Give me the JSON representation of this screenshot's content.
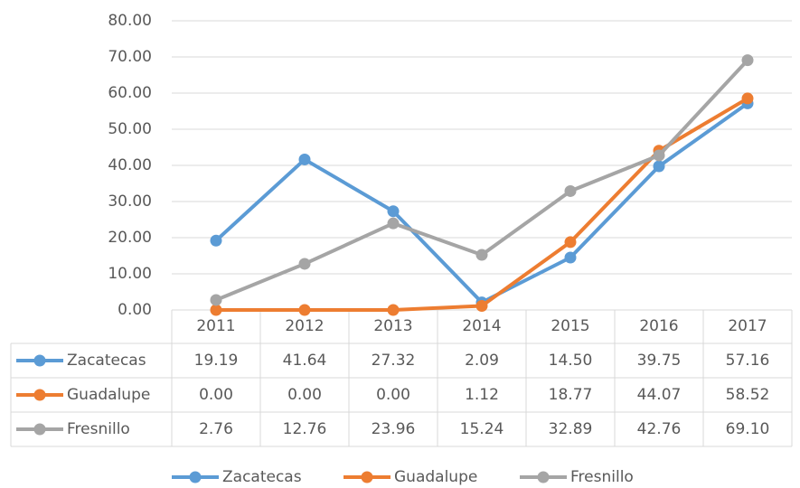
{
  "chart_data": {
    "type": "line",
    "categories": [
      "2011",
      "2012",
      "2013",
      "2014",
      "2015",
      "2016",
      "2017"
    ],
    "series": [
      {
        "name": "Zacatecas",
        "color": "#5b9bd5",
        "values": [
          19.19,
          41.64,
          27.32,
          2.09,
          14.5,
          39.75,
          57.16
        ],
        "value_labels": [
          "19.19",
          "41.64",
          "27.32",
          "2.09",
          "14.50",
          "39.75",
          "57.16"
        ]
      },
      {
        "name": "Guadalupe",
        "color": "#ed7d31",
        "values": [
          0,
          0,
          0,
          1.12,
          18.77,
          44.07,
          58.52
        ],
        "value_labels": [
          "0.00",
          "0.00",
          "0.00",
          "1.12",
          "18.77",
          "44.07",
          "58.52"
        ]
      },
      {
        "name": "Fresnillo",
        "color": "#a5a5a5",
        "values": [
          2.76,
          12.76,
          23.96,
          15.24,
          32.89,
          42.76,
          69.1
        ],
        "value_labels": [
          "2.76",
          "12.76",
          "23.96",
          "15.24",
          "32.89",
          "42.76",
          "69.10"
        ]
      }
    ],
    "ylim": [
      0,
      80
    ],
    "yticks": [
      {
        "value": 0,
        "label": "0.00"
      },
      {
        "value": 10,
        "label": "10.00"
      },
      {
        "value": 20,
        "label": "20.00"
      },
      {
        "value": 30,
        "label": "30.00"
      },
      {
        "value": 40,
        "label": "40.00"
      },
      {
        "value": 50,
        "label": "50.00"
      },
      {
        "value": 60,
        "label": "60.00"
      },
      {
        "value": 70,
        "label": "70.00"
      },
      {
        "value": 80,
        "label": "80.00"
      }
    ],
    "grid": true,
    "legend": "bottom",
    "data_table": true
  }
}
